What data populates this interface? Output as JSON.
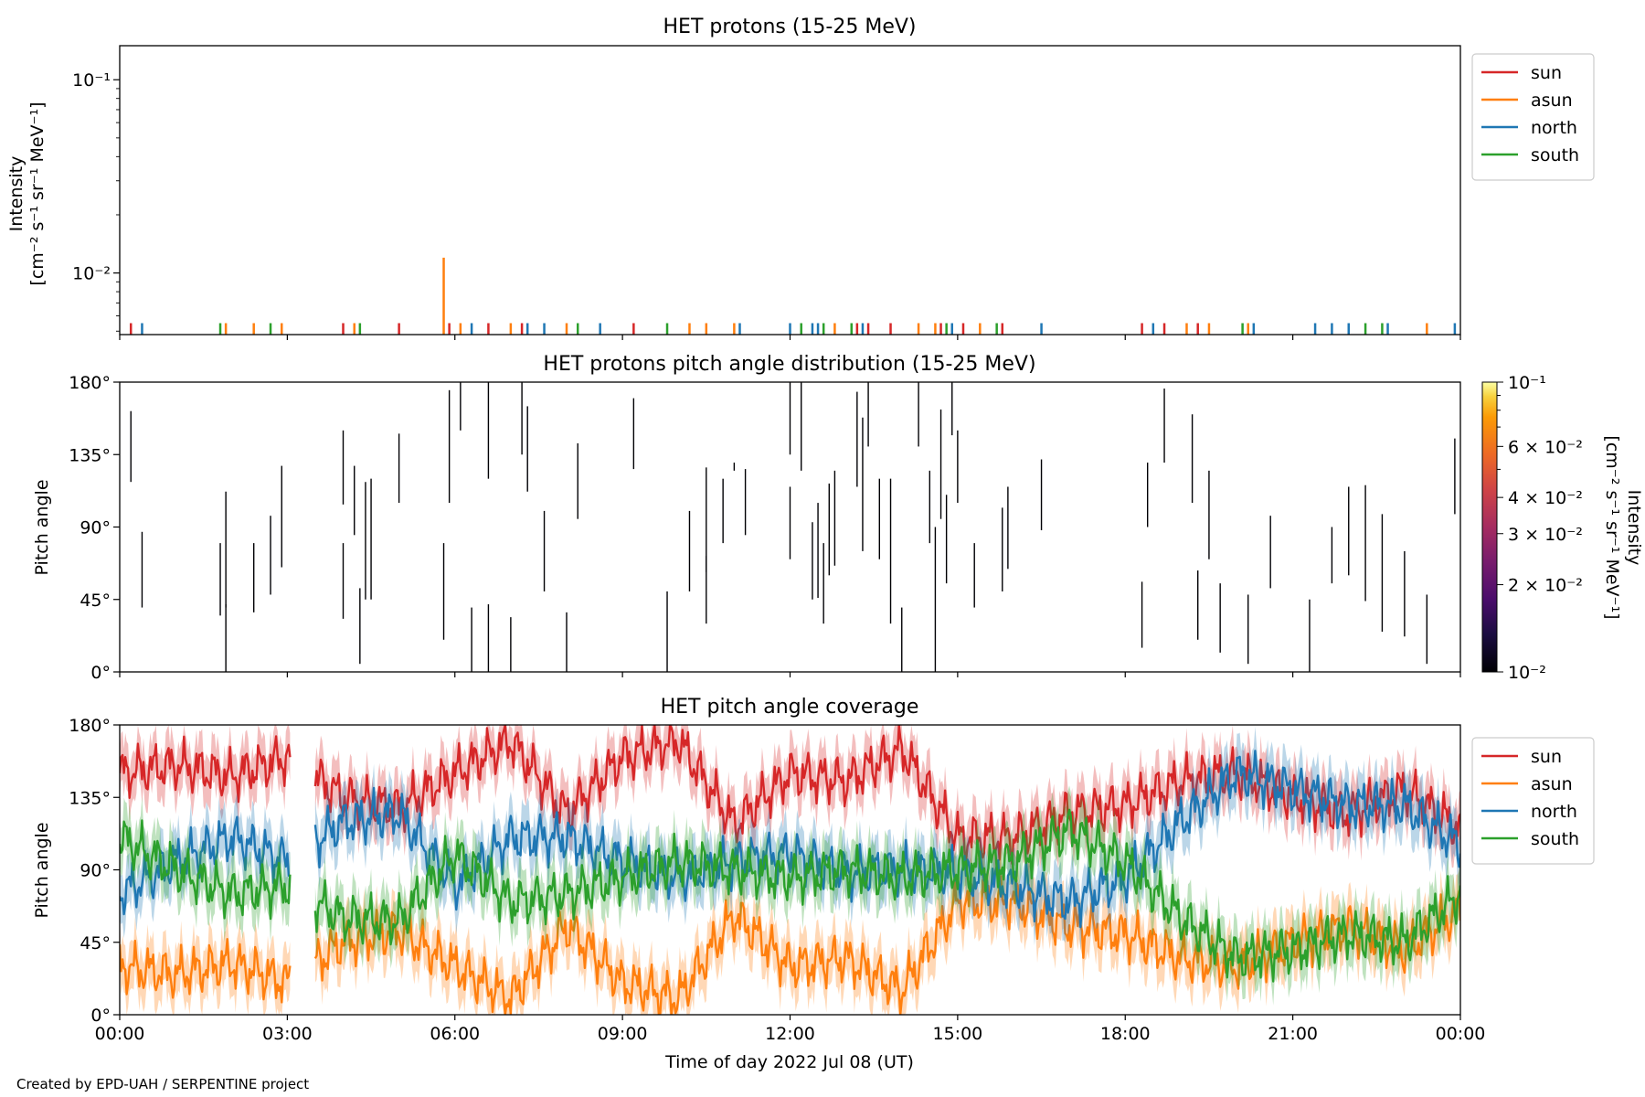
{
  "figure": {
    "credit": "Created by EPD-UAH / SERPENTINE project",
    "xlabel": "Time of day 2022 Jul 08 (UT)",
    "x_ticks": [
      "00:00",
      "03:00",
      "06:00",
      "09:00",
      "12:00",
      "15:00",
      "18:00",
      "21:00",
      "00:00"
    ],
    "x_range_hours": [
      0,
      24
    ]
  },
  "colors": {
    "sun": "#d62728",
    "asun": "#ff7f0e",
    "north": "#1f77b4",
    "south": "#2ca02c"
  },
  "chart_data": [
    {
      "type": "bar",
      "title": "HET protons (15-25 MeV)",
      "ylabel_line1": "Intensity",
      "ylabel_line2": "[cm⁻² s⁻¹ sr⁻¹ MeV⁻¹]",
      "y_scale": "log",
      "ylim": [
        0.0048,
        0.15
      ],
      "y_tick_labels": {
        "0.1": "10⁻¹",
        "0.01": "10⁻²"
      },
      "legend": [
        "sun",
        "asun",
        "north",
        "south"
      ],
      "legend_position": "outside right, top",
      "series": [
        {
          "name": "sun",
          "times_h": [
            0.2,
            4.0,
            5.0,
            5.9,
            6.6,
            7.2,
            9.2,
            13.2,
            13.4,
            13.8,
            14.7,
            15.1,
            15.8,
            18.3,
            18.7,
            19.3
          ]
        },
        {
          "name": "asun",
          "times_h": [
            1.9,
            2.4,
            2.9,
            4.2,
            6.1,
            7.0,
            8.0,
            10.2,
            10.5,
            11.0,
            12.8,
            14.3,
            14.6,
            15.4,
            19.1,
            19.5,
            20.2,
            23.4
          ]
        },
        {
          "name": "north",
          "times_h": [
            0.4,
            6.3,
            7.3,
            7.6,
            8.6,
            11.1,
            12.0,
            12.4,
            12.5,
            13.3,
            14.9,
            16.5,
            18.5,
            20.3,
            21.4,
            21.7,
            22.0,
            22.7,
            23.9
          ]
        },
        {
          "name": "south",
          "times_h": [
            1.8,
            2.7,
            4.3,
            8.2,
            9.8,
            12.2,
            12.6,
            13.1,
            14.8,
            15.7,
            20.1,
            22.3,
            22.6
          ]
        }
      ],
      "value_default": 0.0055,
      "peaks": [
        {
          "series": "asun",
          "time_h": 5.8,
          "value": 0.012
        }
      ]
    },
    {
      "type": "heatmap",
      "title": "HET protons pitch angle distribution (15-25 MeV)",
      "ylabel": "Pitch angle",
      "ylim": [
        0,
        180
      ],
      "y_ticks": [
        0,
        45,
        90,
        135,
        180
      ],
      "colorbar": {
        "colormap": "inferno",
        "scale": "log",
        "range": [
          0.01,
          0.1
        ],
        "ticks": [
          0.01,
          0.02,
          0.03,
          0.04,
          0.06,
          0.1
        ],
        "tick_labels": [
          "10⁻²",
          "2 × 10⁻²",
          "3 × 10⁻²",
          "4 × 10⁻²",
          "6 × 10⁻²",
          "10⁻¹"
        ],
        "label_line1": "Intensity",
        "label_line2": "[cm⁻² s⁻¹ sr⁻¹ MeV⁻¹]"
      },
      "segments": [
        [
          0.2,
          118,
          162
        ],
        [
          0.4,
          40,
          87
        ],
        [
          1.8,
          35,
          80
        ],
        [
          1.9,
          0,
          42
        ],
        [
          1.9,
          40,
          112
        ],
        [
          2.4,
          37,
          80
        ],
        [
          2.7,
          48,
          97
        ],
        [
          2.9,
          65,
          128
        ],
        [
          4.0,
          33,
          80
        ],
        [
          4.0,
          104,
          150
        ],
        [
          4.2,
          85,
          128
        ],
        [
          4.3,
          5,
          52
        ],
        [
          4.4,
          45,
          118
        ],
        [
          4.5,
          45,
          120
        ],
        [
          5.0,
          105,
          148
        ],
        [
          5.8,
          20,
          80
        ],
        [
          5.9,
          105,
          175
        ],
        [
          6.1,
          150,
          180
        ],
        [
          6.3,
          0,
          40
        ],
        [
          6.6,
          120,
          180
        ],
        [
          6.6,
          0,
          42
        ],
        [
          7.0,
          0,
          34
        ],
        [
          7.2,
          135,
          180
        ],
        [
          7.3,
          112,
          165
        ],
        [
          7.6,
          50,
          100
        ],
        [
          8.0,
          0,
          37
        ],
        [
          8.2,
          95,
          142
        ],
        [
          9.2,
          126,
          170
        ],
        [
          9.8,
          0,
          50
        ],
        [
          10.2,
          50,
          100
        ],
        [
          10.5,
          30,
          72
        ],
        [
          10.5,
          62,
          127
        ],
        [
          10.8,
          80,
          120
        ],
        [
          11.0,
          125,
          130
        ],
        [
          11.2,
          85,
          126
        ],
        [
          12.0,
          70,
          115
        ],
        [
          12.0,
          135,
          180
        ],
        [
          12.2,
          125,
          180
        ],
        [
          12.4,
          45,
          93
        ],
        [
          12.5,
          46,
          105
        ],
        [
          12.6,
          30,
          80
        ],
        [
          12.7,
          60,
          117
        ],
        [
          12.8,
          66,
          125
        ],
        [
          13.2,
          115,
          174
        ],
        [
          13.3,
          75,
          158
        ],
        [
          13.4,
          140,
          180
        ],
        [
          13.6,
          70,
          120
        ],
        [
          13.8,
          30,
          120
        ],
        [
          14.0,
          0,
          40
        ],
        [
          14.3,
          140,
          180
        ],
        [
          14.5,
          80,
          125
        ],
        [
          14.6,
          0,
          90
        ],
        [
          14.7,
          95,
          163
        ],
        [
          14.8,
          55,
          110
        ],
        [
          14.9,
          147,
          180
        ],
        [
          15.0,
          105,
          150
        ],
        [
          15.3,
          40,
          80
        ],
        [
          15.8,
          50,
          102
        ],
        [
          15.9,
          64,
          115
        ],
        [
          16.5,
          88,
          132
        ],
        [
          18.3,
          15,
          56
        ],
        [
          18.4,
          90,
          130
        ],
        [
          18.7,
          130,
          176
        ],
        [
          19.2,
          105,
          160
        ],
        [
          19.3,
          20,
          63
        ],
        [
          19.5,
          70,
          125
        ],
        [
          19.7,
          12,
          55
        ],
        [
          20.2,
          5,
          48
        ],
        [
          20.6,
          52,
          97
        ],
        [
          21.3,
          0,
          45
        ],
        [
          21.7,
          55,
          90
        ],
        [
          22.0,
          60,
          115
        ],
        [
          22.3,
          44,
          116
        ],
        [
          22.6,
          25,
          98
        ],
        [
          23.0,
          22,
          75
        ],
        [
          23.4,
          5,
          48
        ],
        [
          23.9,
          98,
          145
        ]
      ]
    },
    {
      "type": "area",
      "title": "HET pitch angle coverage",
      "ylabel": "Pitch angle",
      "ylim": [
        0,
        180
      ],
      "y_ticks": [
        0,
        45,
        90,
        135,
        180
      ],
      "legend": [
        "sun",
        "asun",
        "north",
        "south"
      ],
      "legend_position": "outside right, top",
      "band_half_width_deg": 15,
      "gap_h": [
        3.05,
        3.5
      ],
      "series": [
        {
          "name": "sun",
          "times_h": [
            0,
            1,
            2,
            3,
            4,
            5,
            6,
            7,
            8,
            9,
            10,
            11,
            12,
            13,
            14,
            15,
            16,
            17,
            18,
            19,
            20,
            21,
            22,
            23,
            24
          ],
          "values": [
            150,
            155,
            148,
            160,
            135,
            128,
            150,
            170,
            125,
            160,
            170,
            118,
            150,
            145,
            165,
            110,
            110,
            125,
            130,
            145,
            150,
            135,
            125,
            140,
            115
          ]
        },
        {
          "name": "asun",
          "times_h": [
            0,
            1,
            2,
            3,
            4,
            5,
            6,
            7,
            8,
            9,
            10,
            11,
            12,
            13,
            14,
            15,
            16,
            17,
            18,
            19,
            20,
            21,
            22,
            23,
            24
          ],
          "values": [
            30,
            25,
            32,
            20,
            45,
            52,
            30,
            10,
            55,
            20,
            10,
            62,
            30,
            35,
            15,
            70,
            70,
            55,
            50,
            35,
            30,
            45,
            55,
            40,
            65
          ]
        },
        {
          "name": "north",
          "times_h": [
            0,
            1,
            2,
            3,
            4,
            5,
            6,
            7,
            8,
            9,
            10,
            11,
            12,
            13,
            14,
            15,
            16,
            17,
            18,
            19,
            20,
            21,
            22,
            23,
            24
          ],
          "values": [
            75,
            95,
            110,
            95,
            120,
            125,
            80,
            110,
            110,
            95,
            85,
            95,
            100,
            88,
            90,
            88,
            80,
            70,
            85,
            120,
            150,
            140,
            130,
            130,
            105
          ]
        },
        {
          "name": "south",
          "times_h": [
            0,
            1,
            2,
            3,
            4,
            5,
            6,
            7,
            8,
            9,
            10,
            11,
            12,
            13,
            14,
            15,
            16,
            17,
            18,
            19,
            20,
            21,
            22,
            23,
            24
          ],
          "values": [
            110,
            90,
            75,
            80,
            60,
            58,
            100,
            70,
            75,
            85,
            95,
            90,
            85,
            90,
            85,
            90,
            95,
            115,
            95,
            60,
            35,
            40,
            50,
            45,
            75
          ]
        }
      ]
    }
  ]
}
